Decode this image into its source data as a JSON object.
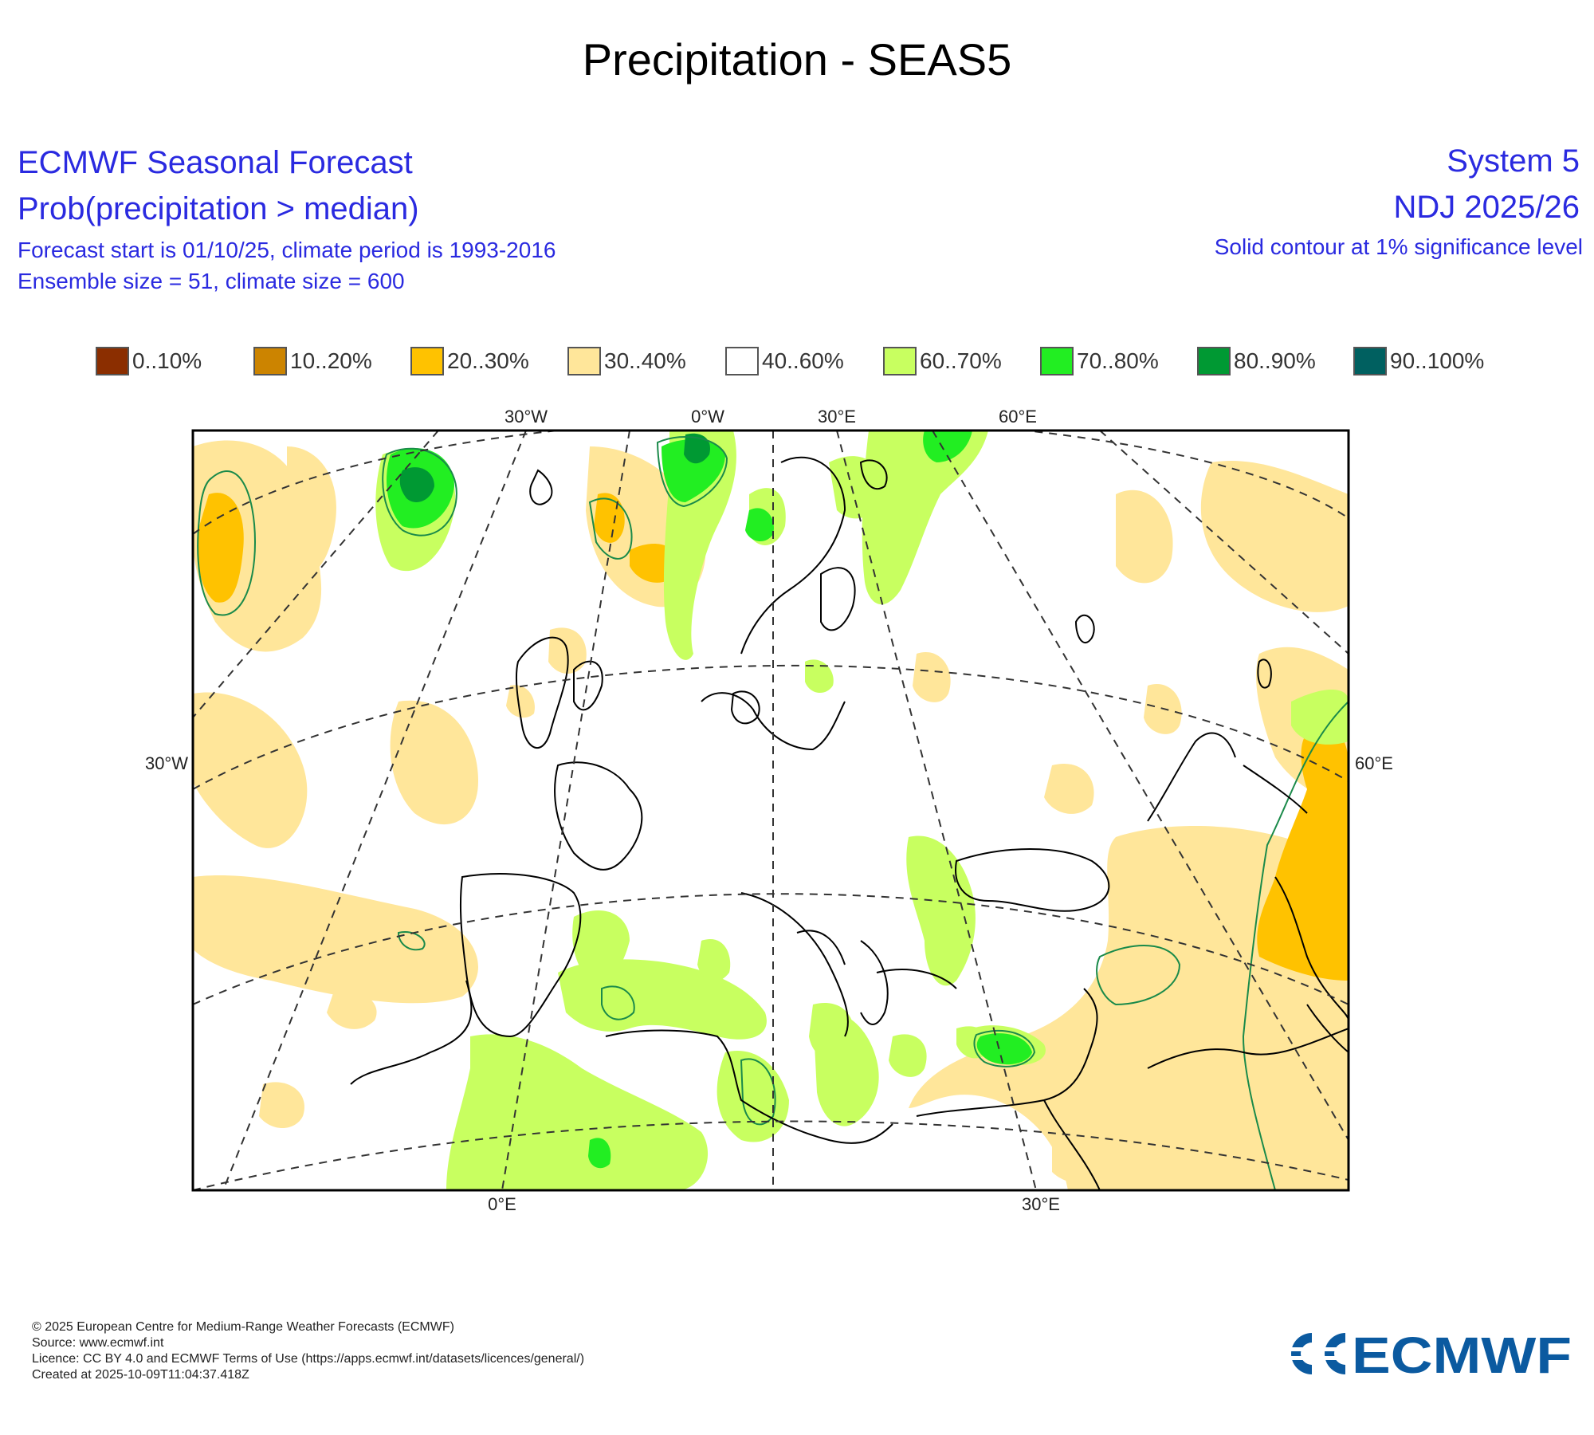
{
  "title": "Precipitation - SEAS5",
  "header_left": {
    "line1": "ECMWF Seasonal Forecast",
    "line2": "Prob(precipitation > median)",
    "line3": "Forecast start is 01/10/25, climate period is 1993-2016",
    "line4": "Ensemble size = 51, climate size = 600"
  },
  "header_right": {
    "line1": "System 5",
    "line2": "NDJ 2025/26",
    "line3": "Solid contour at 1% significance level"
  },
  "legend": [
    {
      "label": "0..10%",
      "color": "#8b2e00"
    },
    {
      "label": "10..20%",
      "color": "#cc8400"
    },
    {
      "label": "20..30%",
      "color": "#ffc200"
    },
    {
      "label": "30..40%",
      "color": "#ffe69a"
    },
    {
      "label": "40..60%",
      "color": "#ffffff"
    },
    {
      "label": "60..70%",
      "color": "#c8ff60"
    },
    {
      "label": "70..80%",
      "color": "#22ee22"
    },
    {
      "label": "80..90%",
      "color": "#009933"
    },
    {
      "label": "90..100%",
      "color": "#006060"
    }
  ],
  "axis_labels": {
    "top": [
      "30°W",
      "0°W",
      "30°E",
      "60°E"
    ],
    "bottom": [
      "0°E",
      "30°E"
    ],
    "left": "30°W",
    "right": "60°E"
  },
  "footer": {
    "line1": "© 2025 European Centre for Medium-Range Weather Forecasts (ECMWF)",
    "line2": "Source: www.ecmwf.int",
    "line3": "Licence: CC BY 4.0 and ECMWF Terms of Use (https://apps.ecmwf.int/datasets/licences/general/)",
    "line4": "Created at 2025-10-09T11:04:37.418Z"
  },
  "logo_text": "ECMWF",
  "logo_color": "#0b5aa0"
}
